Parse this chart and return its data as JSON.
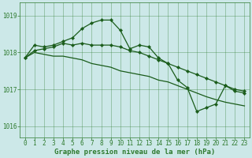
{
  "title": "Graphe pression niveau de la mer (hPa)",
  "background_color": "#cce8e8",
  "grid_color": "#2e7a2e",
  "line_color": "#1a5c1a",
  "marker_color": "#1a5c1a",
  "xlim": [
    -0.5,
    23.5
  ],
  "ylim": [
    1015.7,
    1019.35
  ],
  "yticks": [
    1016,
    1017,
    1018,
    1019
  ],
  "xticks": [
    0,
    1,
    2,
    3,
    4,
    5,
    6,
    7,
    8,
    9,
    10,
    11,
    12,
    13,
    14,
    15,
    16,
    17,
    18,
    19,
    20,
    21,
    22,
    23
  ],
  "series1_x": [
    0,
    1,
    2,
    3,
    4,
    5,
    6,
    7,
    8,
    9,
    10,
    11,
    12,
    13,
    14,
    15,
    16,
    17,
    18,
    19,
    20,
    21,
    22,
    23
  ],
  "series1_y": [
    1017.85,
    1018.2,
    1018.15,
    1018.2,
    1018.3,
    1018.4,
    1018.65,
    1018.8,
    1018.88,
    1018.88,
    1018.6,
    1018.1,
    1018.2,
    1018.15,
    1017.85,
    1017.7,
    1017.25,
    1017.05,
    1016.4,
    1016.5,
    1016.6,
    1017.1,
    1016.95,
    1016.9
  ],
  "series2_x": [
    0,
    1,
    2,
    3,
    4,
    5,
    6,
    7,
    8,
    9,
    10,
    11,
    12,
    13,
    14,
    15,
    16,
    17,
    18,
    19,
    20,
    21,
    22,
    23
  ],
  "series2_y": [
    1017.85,
    1018.05,
    1018.1,
    1018.15,
    1018.25,
    1018.2,
    1018.25,
    1018.2,
    1018.2,
    1018.2,
    1018.15,
    1018.05,
    1018.0,
    1017.9,
    1017.8,
    1017.7,
    1017.6,
    1017.5,
    1017.4,
    1017.3,
    1017.2,
    1017.1,
    1017.0,
    1016.95
  ],
  "series3_x": [
    0,
    1,
    2,
    3,
    4,
    5,
    6,
    7,
    8,
    9,
    10,
    11,
    12,
    13,
    14,
    15,
    16,
    17,
    18,
    19,
    20,
    21,
    22,
    23
  ],
  "series3_y": [
    1017.85,
    1018.0,
    1017.95,
    1017.9,
    1017.9,
    1017.85,
    1017.8,
    1017.7,
    1017.65,
    1017.6,
    1017.5,
    1017.45,
    1017.4,
    1017.35,
    1017.25,
    1017.2,
    1017.1,
    1017.0,
    1016.9,
    1016.8,
    1016.72,
    1016.65,
    1016.6,
    1016.55
  ],
  "tick_fontsize": 5.5,
  "title_fontsize": 6.5
}
